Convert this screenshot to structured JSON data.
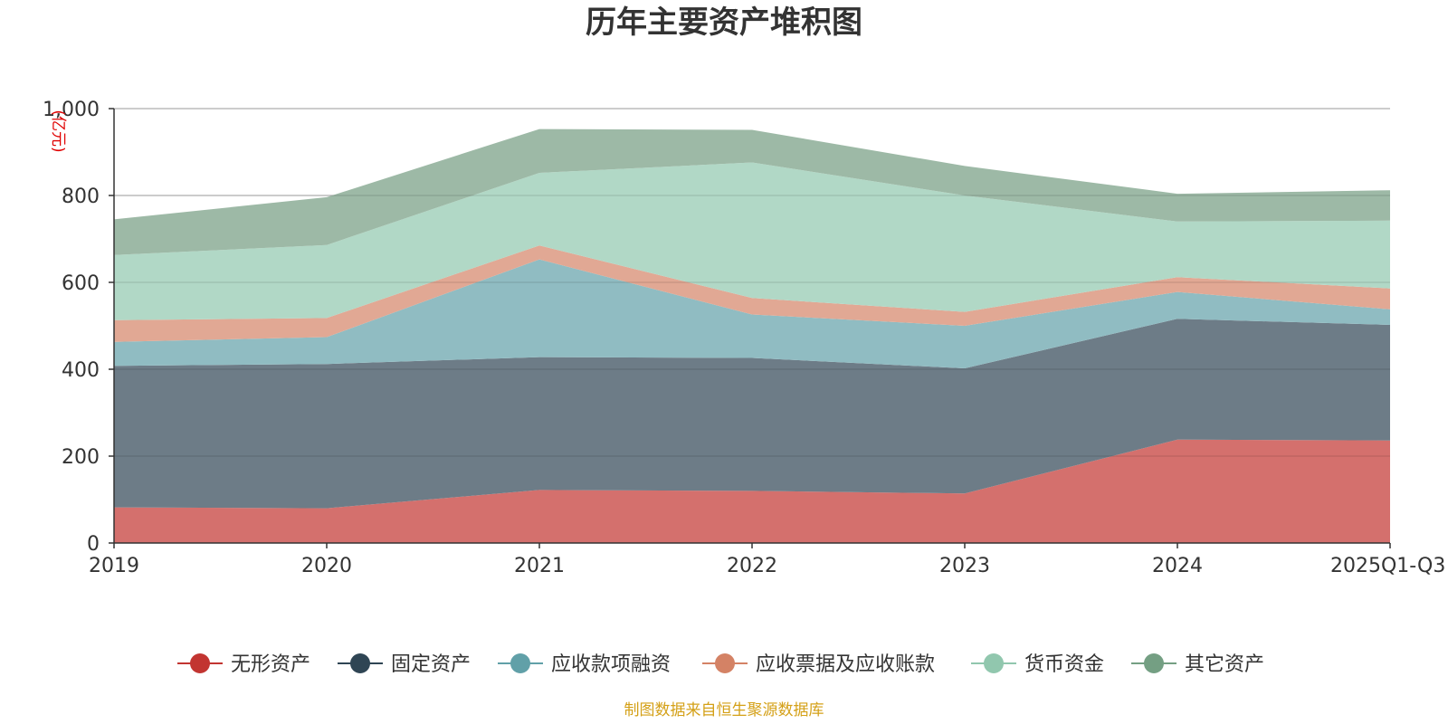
{
  "chart_data": {
    "type": "area",
    "stacked": true,
    "title": "历年主要资产堆积图",
    "ylabel": "(亿元)",
    "xlabel": "",
    "ylim": [
      0,
      1000
    ],
    "yticks": [
      "0",
      "200",
      "400",
      "600",
      "800",
      "1,000"
    ],
    "categories": [
      "2019",
      "2020",
      "2021",
      "2022",
      "2023",
      "2024",
      "2025Q1-Q3"
    ],
    "series": [
      {
        "name": "无形资产",
        "color": "#c23531",
        "area_color": "#d4706d",
        "values": [
          82,
          80,
          122,
          120,
          114,
          238,
          236
        ]
      },
      {
        "name": "固定资产",
        "color": "#2f4554",
        "area_color": "#6d7c87",
        "values": [
          326,
          332,
          306,
          306,
          288,
          278,
          266
        ]
      },
      {
        "name": "应收款项融资",
        "color": "#61a0a8",
        "area_color": "#90bcc2",
        "values": [
          55,
          62,
          225,
          100,
          98,
          62,
          36
        ]
      },
      {
        "name": "应收票据及应收账款",
        "color": "#d48265",
        "area_color": "#e1a894",
        "values": [
          50,
          44,
          32,
          38,
          32,
          34,
          48
        ]
      },
      {
        "name": "货币资金",
        "color": "#91c7ae",
        "area_color": "#b1d8c6",
        "values": [
          150,
          168,
          167,
          312,
          268,
          128,
          156
        ]
      },
      {
        "name": "其它资产",
        "color": "#749f83",
        "area_color": "#9db9a6",
        "values": [
          82,
          110,
          101,
          75,
          68,
          64,
          70
        ]
      }
    ],
    "legend_position": "bottom",
    "grid": true
  },
  "footer": {
    "source": "制图数据来自恒生聚源数据库"
  }
}
